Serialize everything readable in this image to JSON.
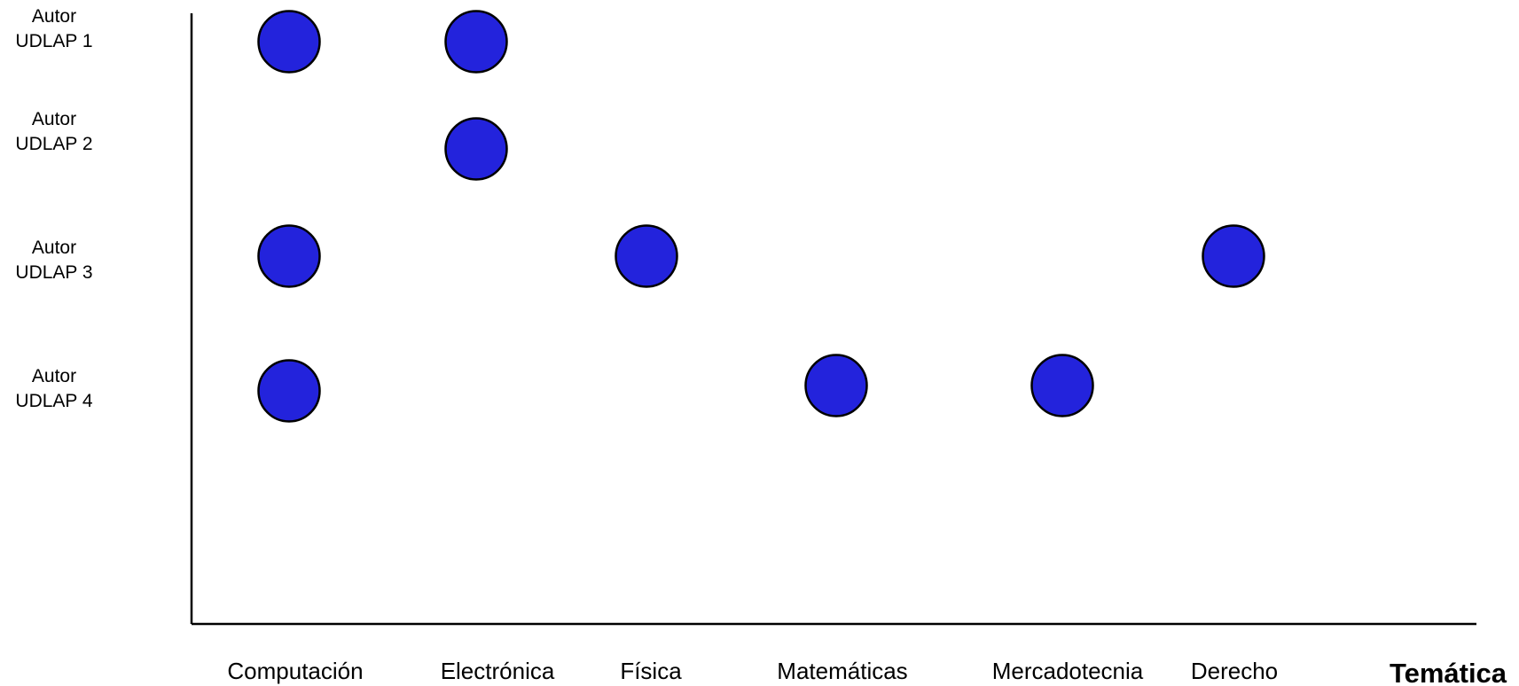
{
  "chart_data": {
    "type": "scatter",
    "title": "",
    "xlabel": "Temática",
    "ylabel": "",
    "x_categories": [
      "Computación",
      "Electrónica",
      "Física",
      "Matemáticas",
      "Mercadotecnia",
      "Derecho"
    ],
    "y_categories": [
      [
        "Autor",
        "UDLAP 1"
      ],
      [
        "Autor",
        "UDLAP 2"
      ],
      [
        "Autor",
        "UDLAP 3"
      ],
      [
        "Autor",
        "UDLAP 4"
      ]
    ],
    "points": [
      {
        "x": "Computación",
        "y": "UDLAP 1"
      },
      {
        "x": "Electrónica",
        "y": "UDLAP 1"
      },
      {
        "x": "Electrónica",
        "y": "UDLAP 2"
      },
      {
        "x": "Computación",
        "y": "UDLAP 3"
      },
      {
        "x": "Física",
        "y": "UDLAP 3"
      },
      {
        "x": "Derecho",
        "y": "UDLAP 3"
      },
      {
        "x": "Computación",
        "y": "UDLAP 4"
      },
      {
        "x": "Matemáticas",
        "y": "UDLAP 4"
      },
      {
        "x": "Mercadotecnia",
        "y": "UDLAP 4"
      }
    ],
    "grid": false,
    "legend": "none",
    "marker_color": "#2323dc"
  }
}
